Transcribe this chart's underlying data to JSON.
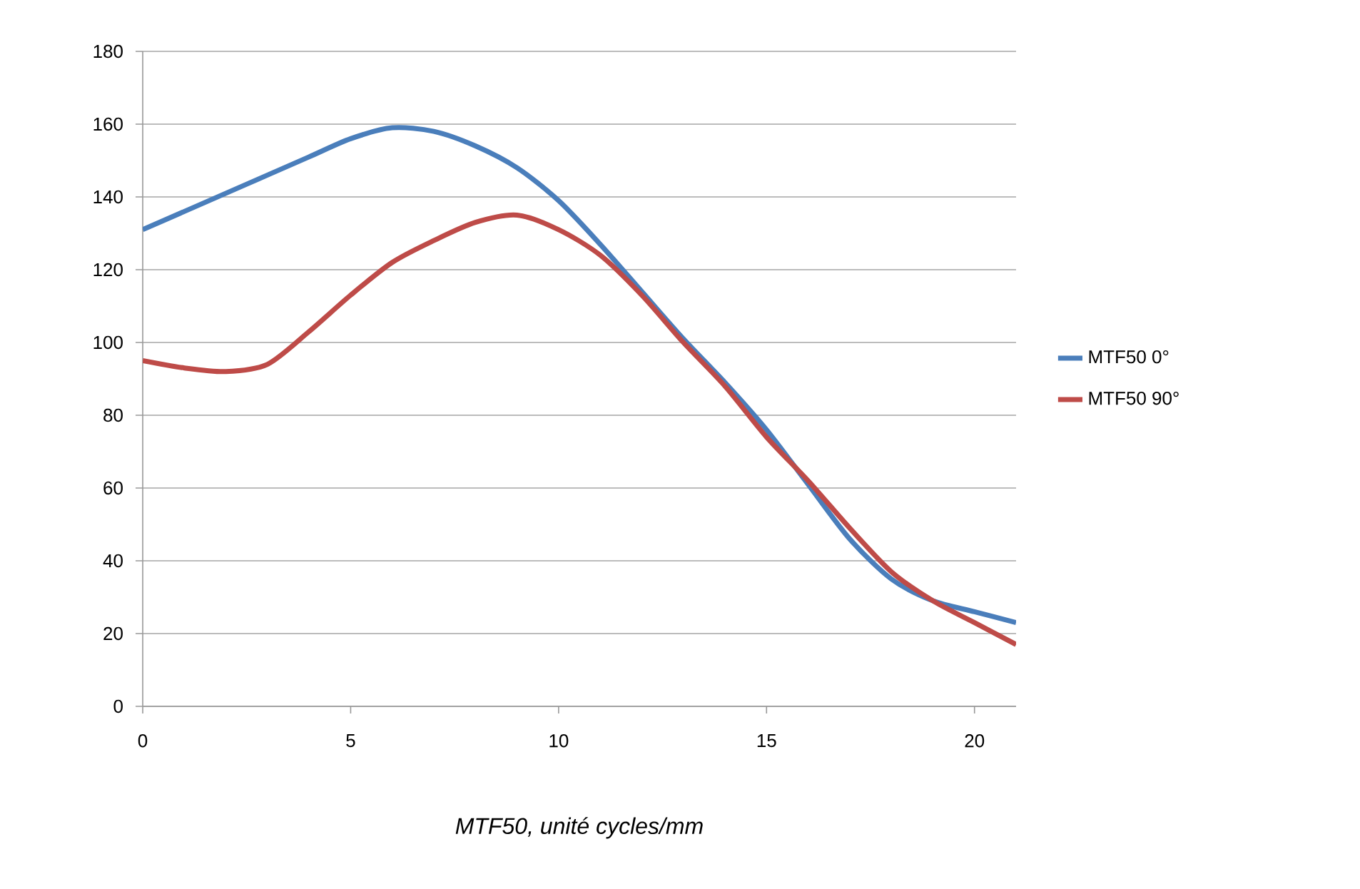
{
  "chart_data": {
    "type": "line",
    "xlabel": "MTF50, unité cycles/mm",
    "x": [
      0,
      1,
      2,
      3,
      4,
      5,
      6,
      7,
      8,
      9,
      10,
      11,
      12,
      13,
      14,
      15,
      16,
      17,
      18,
      19,
      20,
      21
    ],
    "series": [
      {
        "name": "MTF50 0°",
        "color": "#4a7ebb",
        "values": [
          131,
          136,
          141,
          146,
          151,
          156,
          159,
          158,
          154,
          148,
          139,
          127,
          114,
          101,
          89,
          76,
          61,
          46,
          35,
          29,
          26,
          23
        ]
      },
      {
        "name": "MTF50 90°",
        "color": "#be4b48",
        "values": [
          95,
          93,
          92,
          94,
          103,
          113,
          122,
          128,
          133,
          135,
          131,
          124,
          113,
          100,
          88,
          74,
          62,
          49,
          37,
          29,
          23,
          17
        ]
      }
    ],
    "xlim": [
      0,
      21
    ],
    "xticks": [
      0,
      5,
      10,
      15,
      20
    ],
    "ylim": [
      0,
      180
    ],
    "yticks": [
      0,
      20,
      40,
      60,
      80,
      100,
      120,
      140,
      160,
      180
    ],
    "grid": "y",
    "legend": "right",
    "marker": "none",
    "line_style": "solid"
  }
}
